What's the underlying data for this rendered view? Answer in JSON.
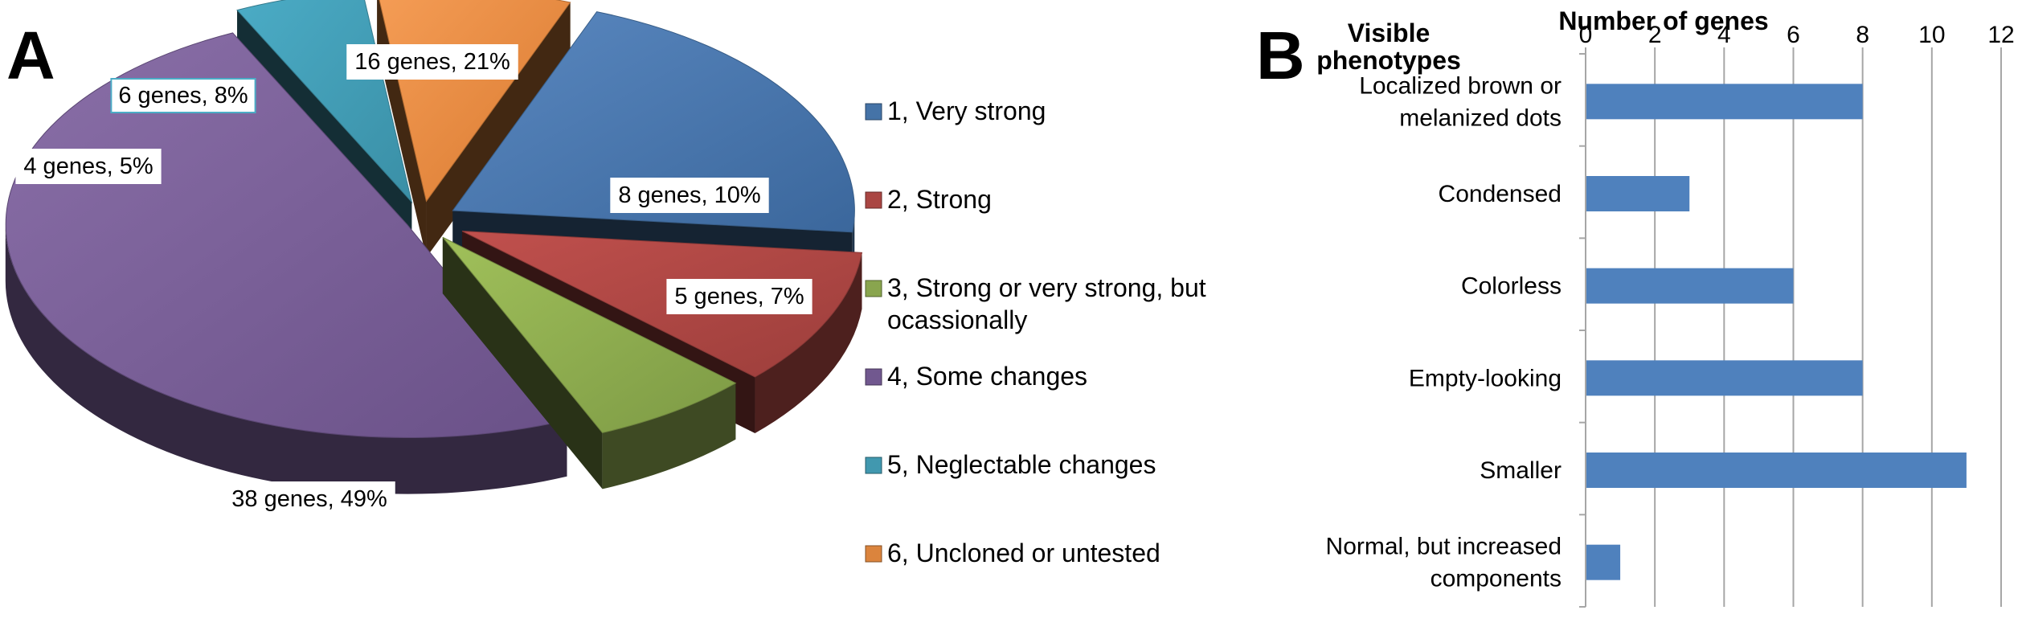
{
  "panels": {
    "a": "A",
    "b": "B"
  },
  "chart_data": [
    {
      "type": "pie",
      "panel": "A",
      "style": "3d-exploded",
      "slices": [
        {
          "legend": "1, Very strong",
          "value": 16,
          "percent": 21,
          "label": "16 genes, 21%",
          "color": "#4573A7"
        },
        {
          "legend": "2, Strong",
          "value": 8,
          "percent": 10,
          "label": "8 genes, 10%",
          "color": "#AA4643"
        },
        {
          "legend": "3, Strong or very strong, but ocassionally",
          "legend_lines": [
            "3, Strong or very strong, but",
            "ocassionally"
          ],
          "value": 5,
          "percent": 7,
          "label": "5 genes, 7%",
          "color": "#89A54E"
        },
        {
          "legend": "4, Some changes",
          "value": 38,
          "percent": 49,
          "label": "38 genes, 49%",
          "color": "#71588F"
        },
        {
          "legend": "5, Neglectable changes",
          "value": 4,
          "percent": 5,
          "label": "4 genes, 5%",
          "color": "#4198AF"
        },
        {
          "legend": "6, Uncloned or untested",
          "value": 6,
          "percent": 8,
          "label": "6 genes, 8%",
          "color": "#DB843D"
        }
      ],
      "legend_position": "right"
    },
    {
      "type": "bar",
      "orientation": "horizontal",
      "panel": "B",
      "category_header_lines": [
        "Visible",
        "phenotypes"
      ],
      "xlabel": "Number of genes",
      "xlim": [
        0,
        12
      ],
      "xticks": [
        "0",
        "2",
        "4",
        "6",
        "8",
        "10",
        "12"
      ],
      "grid": "vertical",
      "categories": [
        {
          "lines": [
            "Localized brown or",
            "melanized dots"
          ],
          "value": 8
        },
        {
          "lines": [
            "Condensed"
          ],
          "value": 3
        },
        {
          "lines": [
            "Colorless"
          ],
          "value": 6
        },
        {
          "lines": [
            "Empty-looking"
          ],
          "value": 8
        },
        {
          "lines": [
            "Smaller"
          ],
          "value": 11
        },
        {
          "lines": [
            "Normal, but increased",
            "components"
          ],
          "value": 1
        }
      ],
      "bar_color": "#4F81BD"
    }
  ]
}
